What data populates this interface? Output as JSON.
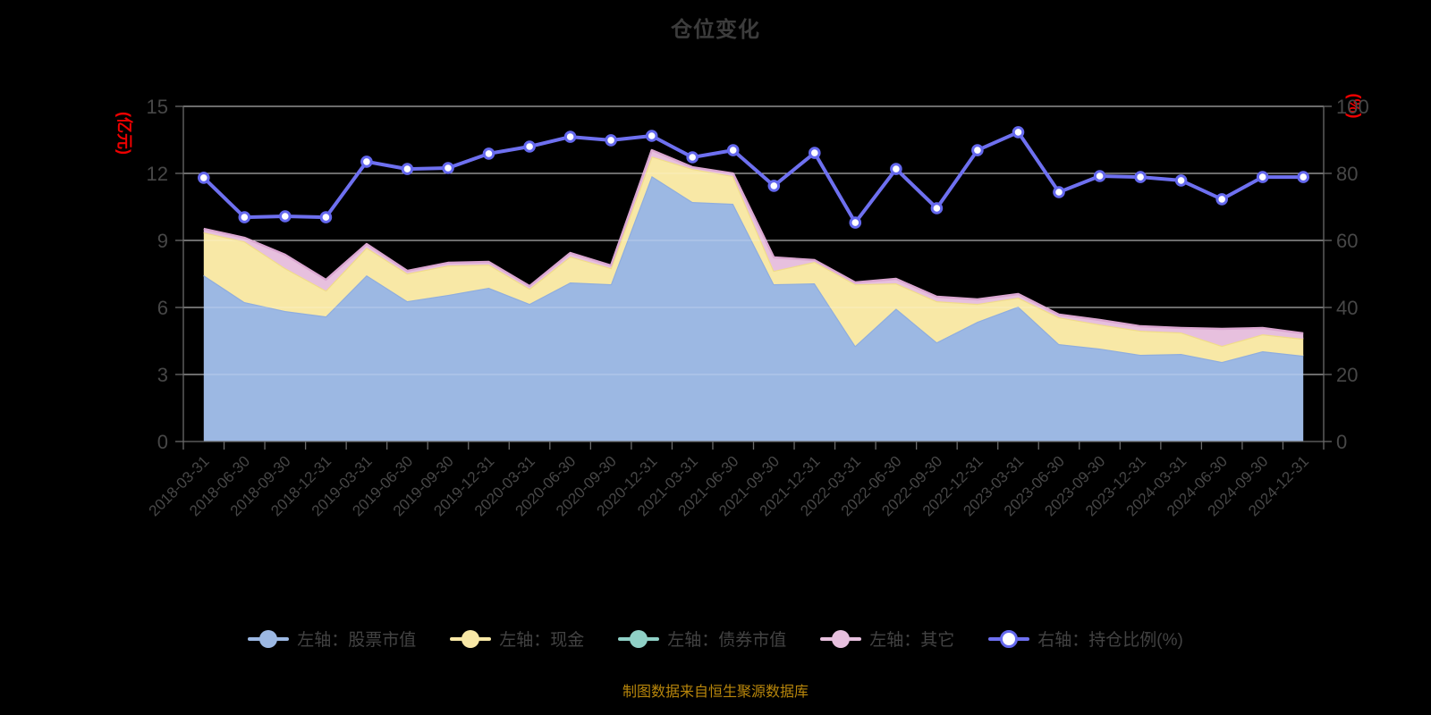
{
  "title": "仓位变化",
  "footer_note": "制图数据来自恒生聚源数据库",
  "colors": {
    "background": "#000000",
    "title_text": "#3c3c3c",
    "axis_text": "#474747",
    "grid_line": "#c9c9c9",
    "grid_line_over_area": "rgba(255,255,255,0.28)",
    "axis_line": "#6a6a6a",
    "unit_label_red": "#ee0000",
    "footer_orange": "#b8860b",
    "legend_text": "#434343",
    "dot_fill": "#ffffff"
  },
  "chart_data": {
    "type": "area",
    "subtype": "stacked-area-with-right-axis-line",
    "title": "仓位变化",
    "grid": true,
    "legend_position": "bottom",
    "categories": [
      "2018-03-31",
      "2018-06-30",
      "2018-09-30",
      "2018-12-31",
      "2019-03-31",
      "2019-06-30",
      "2019-09-30",
      "2019-12-31",
      "2020-03-31",
      "2020-06-30",
      "2020-09-30",
      "2020-12-31",
      "2021-03-31",
      "2021-06-30",
      "2021-09-30",
      "2021-12-31",
      "2022-03-31",
      "2022-06-30",
      "2022-09-30",
      "2022-12-31",
      "2023-03-31",
      "2023-06-30",
      "2023-09-30",
      "2023-12-31",
      "2024-03-31",
      "2024-06-30",
      "2024-09-30",
      "2024-12-31"
    ],
    "left_axis": {
      "unit": "(亿元)",
      "min": 0,
      "max": 15,
      "ticks": [
        "0",
        "3",
        "6",
        "9",
        "12",
        "15"
      ]
    },
    "right_axis": {
      "unit": "(%)",
      "min": 0,
      "max": 100,
      "ticks": [
        "0",
        "20",
        "40",
        "60",
        "80",
        "100"
      ]
    },
    "series": [
      {
        "name": "左轴：股票市值",
        "axis": "left",
        "kind": "area",
        "stacked": true,
        "color": "#9cb8e3",
        "edge_color": "#8fadde",
        "values": [
          7.44,
          6.24,
          5.84,
          5.6,
          7.44,
          6.28,
          6.56,
          6.88,
          6.16,
          7.12,
          7.04,
          11.88,
          10.72,
          10.64,
          7.04,
          7.08,
          4.28,
          5.95,
          4.44,
          5.36,
          6.04,
          4.36,
          4.16,
          3.88,
          3.92,
          3.56,
          4.04,
          3.84
        ]
      },
      {
        "name": "左轴：现金",
        "axis": "left",
        "kind": "area",
        "stacked": true,
        "color": "#f8e8a6",
        "edge_color": "#f0dc8a",
        "values": [
          1.92,
          2.72,
          1.92,
          1.16,
          1.24,
          1.24,
          1.32,
          1.04,
          0.68,
          1.16,
          0.72,
          0.88,
          1.48,
          1.24,
          0.6,
          0.96,
          2.76,
          1.13,
          1.84,
          0.8,
          0.4,
          1.2,
          1.08,
          1.08,
          0.96,
          0.72,
          0.76,
          0.76
        ]
      },
      {
        "name": "左轴：债券市值",
        "axis": "left",
        "kind": "area",
        "stacked": true,
        "color": "#8fd0c6",
        "edge_color": "#7dc5ba",
        "values": [
          0,
          0,
          0,
          0,
          0,
          0,
          0,
          0,
          0,
          0,
          0,
          0,
          0,
          0,
          0,
          0,
          0,
          0,
          0,
          0,
          0,
          0,
          0,
          0,
          0,
          0,
          0,
          0
        ]
      },
      {
        "name": "左轴：其它",
        "axis": "left",
        "kind": "area",
        "stacked": true,
        "color": "#e7c0de",
        "edge_color": "#dba7d1",
        "values": [
          0.16,
          0.16,
          0.6,
          0.48,
          0.16,
          0.12,
          0.12,
          0.12,
          0.12,
          0.16,
          0.12,
          0.28,
          0.08,
          0.12,
          0.6,
          0.08,
          0.08,
          0.2,
          0.2,
          0.2,
          0.16,
          0.12,
          0.2,
          0.2,
          0.2,
          0.76,
          0.28,
          0.24
        ]
      },
      {
        "name": "右轴：持仓比例(%)",
        "axis": "right",
        "kind": "line",
        "color": "#6e70f0",
        "edge_color": "#6468ee",
        "values": [
          78.7,
          66.9,
          67.2,
          66.9,
          83.5,
          81.3,
          81.6,
          85.9,
          88.0,
          90.9,
          89.9,
          91.2,
          84.8,
          86.9,
          76.3,
          86.1,
          65.3,
          81.3,
          69.6,
          86.9,
          92.3,
          74.4,
          79.2,
          78.9,
          77.9,
          72.3,
          78.9,
          78.9
        ]
      }
    ]
  }
}
